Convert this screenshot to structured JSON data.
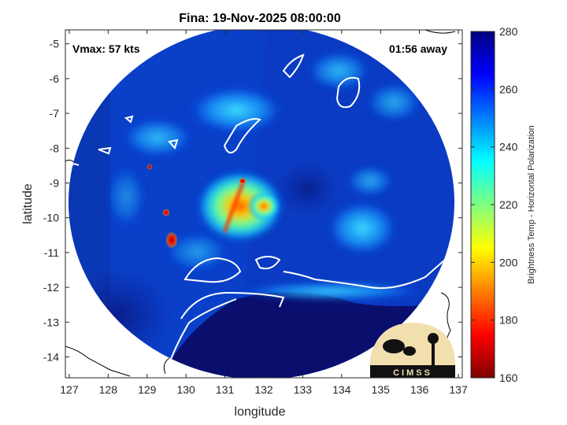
{
  "chart_data": {
    "type": "heatmap",
    "title": "Fina: 19-Nov-2025 08:00:00",
    "xlabel": "longitude",
    "ylabel": "latitude",
    "xlim": [
      126.9,
      137.1
    ],
    "ylim": [
      -14.6,
      -4.6
    ],
    "xticks": [
      127,
      128,
      129,
      130,
      131,
      132,
      133,
      134,
      135,
      136,
      137
    ],
    "yticks": [
      -5,
      -6,
      -7,
      -8,
      -9,
      -10,
      -11,
      -12,
      -13,
      -14
    ],
    "annotations": {
      "vmax": "Vmax: 57 kts",
      "time_away": "01:56 away"
    },
    "colorbar": {
      "label": "Brightness Temp - Horizontal Polarization",
      "range": [
        160,
        280
      ],
      "ticks": [
        280,
        260,
        240,
        220,
        200,
        180,
        160
      ],
      "colormap": "jet"
    },
    "storm_center": {
      "lon": 131.6,
      "lat": -9.9
    },
    "logo_text": "CIMSS"
  },
  "colors": {
    "background_cold": "#0a2fb0",
    "warm_land": "#0a0f6e",
    "coast": "#ffffff",
    "coast_outside": "#000000"
  }
}
